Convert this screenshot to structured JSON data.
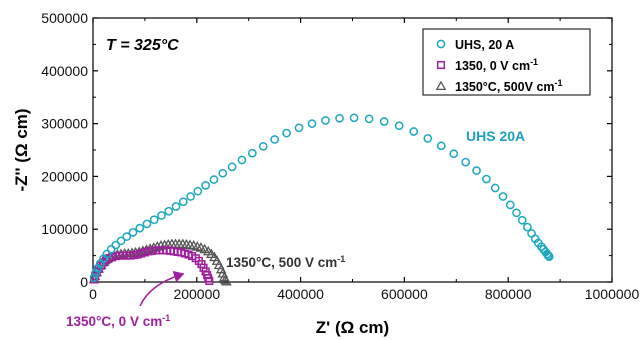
{
  "chart_data": {
    "type": "scatter",
    "title": "",
    "xlabel": "Z' (Ω cm)",
    "ylabel": "-Z'' (Ω cm)",
    "xlim": [
      0,
      1000000
    ],
    "ylim": [
      0,
      500000
    ],
    "xticks": [
      0,
      200000,
      400000,
      600000,
      800000,
      1000000
    ],
    "yticks": [
      0,
      100000,
      200000,
      300000,
      400000,
      500000
    ],
    "grid": false,
    "legend_position": "top-right",
    "series": [
      {
        "name": "UHS, 20 A",
        "marker": "circle",
        "color": "#1aa7bf",
        "x": [
          2000,
          5000,
          9000,
          14000,
          20000,
          27000,
          35000,
          44000,
          54000,
          65000,
          77000,
          90000,
          104000,
          118000,
          132000,
          146000,
          160000,
          174000,
          188000,
          202000,
          217000,
          233000,
          250000,
          268000,
          287000,
          307000,
          328000,
          350000,
          373000,
          397000,
          422000,
          448000,
          475000,
          503000,
          532000,
          561000,
          590000,
          618000,
          645000,
          671000,
          695000,
          718000,
          739000,
          758000,
          775000,
          790000,
          804000,
          816000,
          827000,
          837000,
          845000,
          852000,
          858000,
          864000,
          868000,
          872000,
          875000,
          877000,
          879000
        ],
        "y": [
          8000,
          17000,
          26000,
          35000,
          44000,
          53000,
          62000,
          70000,
          78000,
          86000,
          94000,
          102000,
          110000,
          118000,
          126000,
          134000,
          143000,
          152000,
          162000,
          172000,
          183000,
          194000,
          206000,
          218000,
          231000,
          244000,
          257000,
          270000,
          282000,
          292000,
          300000,
          306000,
          310000,
          311000,
          309000,
          304000,
          296000,
          285000,
          272000,
          258000,
          243000,
          227000,
          211000,
          195000,
          178000,
          162000,
          146000,
          131000,
          117000,
          104000,
          92000,
          82000,
          74000,
          67000,
          62000,
          57000,
          53000,
          50000,
          48000
        ]
      },
      {
        "name": "1350, 0 V cm⁻¹",
        "marker": "square",
        "color": "#a01f9e",
        "x": [
          2000,
          4000,
          7000,
          11000,
          15000,
          20000,
          25000,
          31000,
          37000,
          44000,
          51000,
          58000,
          65000,
          72000,
          79000,
          86000,
          93000,
          100000,
          107000,
          114000,
          121000,
          128000,
          135000,
          142000,
          149000,
          156000,
          163000,
          170000,
          177000,
          184000,
          191000,
          198000,
          204000,
          209000,
          213000,
          217000,
          220000,
          222000,
          224000
        ],
        "y": [
          5000,
          11000,
          18000,
          25000,
          31000,
          37000,
          41000,
          45000,
          47000,
          49000,
          50000,
          50000,
          50000,
          50000,
          51000,
          52000,
          54000,
          56000,
          58000,
          59000,
          60000,
          60000,
          60000,
          60000,
          59000,
          58000,
          57000,
          56000,
          54000,
          52000,
          49000,
          45000,
          40000,
          34000,
          27000,
          20000,
          13000,
          7000,
          2000
        ]
      },
      {
        "name": "1350°C, 500V cm⁻¹",
        "marker": "triangle",
        "color": "#555555",
        "x": [
          2000,
          4000,
          7000,
          11000,
          16000,
          21000,
          27000,
          33000,
          40000,
          47000,
          54000,
          61000,
          68000,
          75000,
          82000,
          89000,
          96000,
          103000,
          110000,
          117000,
          124000,
          131000,
          138000,
          145000,
          152000,
          159000,
          166000,
          173000,
          180000,
          187000,
          194000,
          201000,
          208000,
          215000,
          222000,
          228000,
          234000,
          239000,
          243000,
          247000,
          250000,
          253000,
          255000,
          257000
        ],
        "y": [
          5000,
          11000,
          18000,
          25000,
          32000,
          38000,
          43000,
          47000,
          50000,
          52000,
          53000,
          54000,
          54000,
          55000,
          56000,
          57000,
          59000,
          61000,
          63000,
          65000,
          67000,
          69000,
          70000,
          71000,
          72000,
          72000,
          72000,
          72000,
          71000,
          70000,
          69000,
          67000,
          65000,
          62000,
          58000,
          53000,
          47000,
          40000,
          32000,
          24000,
          16000,
          9000,
          4000,
          1000
        ]
      }
    ],
    "annotations": [
      {
        "text_pre": "T",
        "text_post": " = 325°C",
        "color": "#000000"
      },
      {
        "text": "UHS 20A",
        "color": "#1b9fc4"
      },
      {
        "text": "1350°C, 500 V cm",
        "sup": "-1",
        "color": "#333333"
      },
      {
        "text": "1350°C, 0 V cm",
        "sup": "-1",
        "color": "#a01f9e"
      }
    ]
  }
}
